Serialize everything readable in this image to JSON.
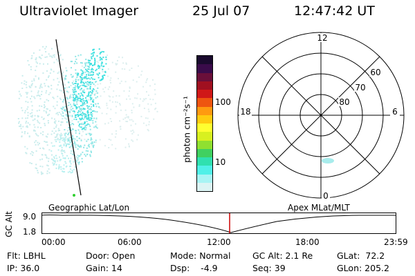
{
  "header": {
    "instrument": "Ultraviolet Imager",
    "date": "25 Jul 07",
    "time": "12:47:42 UT"
  },
  "colorbar": {
    "label": "photon cm⁻²s⁻¹",
    "ticks": [
      "100",
      "10"
    ],
    "colors": [
      "#1a0a2e",
      "#3a0b4a",
      "#6a0f3a",
      "#a01020",
      "#d01818",
      "#ee5510",
      "#ff9a10",
      "#ffcc10",
      "#ffff30",
      "#d8f020",
      "#90e030",
      "#40d060",
      "#30e0b0",
      "#50f0e8",
      "#a8f4f4",
      "#dcf4f4"
    ]
  },
  "polar": {
    "lat_labels": [
      "60",
      "70",
      "80"
    ],
    "mlt_labels": {
      "top": "12",
      "right": "6",
      "bottom": "0",
      "left": "18"
    }
  },
  "timeline": {
    "left_title": "Geographic Lat/Lon",
    "right_title": "Apex MLat/MLT",
    "axis_label": "GC Alt",
    "y_labels": [
      "9.0",
      "1.8"
    ],
    "x_labels": [
      "00:00",
      "06:00",
      "12:00",
      "18:00",
      "23:59"
    ],
    "marker_color": "#cc0000"
  },
  "info": {
    "flt": "Flt: LBHL",
    "ip": "IP: 36.0",
    "door": "Door: Open",
    "gain": "Gain: 14",
    "mode": "Mode: Normal",
    "dsp": "Dsp:    -4.9",
    "gcalt": "GC Alt: 2.1 Re",
    "seq": "Seq: 39",
    "glat": "GLat:  72.2",
    "glon": "GLon: 205.2"
  }
}
